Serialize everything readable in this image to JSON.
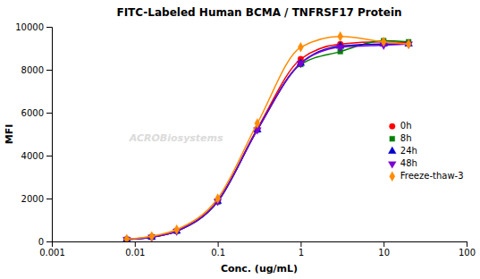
{
  "chart_data": {
    "type": "line",
    "title": "FITC-Labeled Human BCMA / TNFRSF17 Protein",
    "xlabel": "Conc. (ug/mL)",
    "ylabel": "MFI",
    "annotations": [
      "ACROBiosystems"
    ],
    "log": "x",
    "grid": false,
    "legend": "right",
    "xlim": [
      0.001,
      100
    ],
    "xticks": [
      0.001,
      0.01,
      0.1,
      1,
      10,
      100
    ],
    "ylim": [
      0,
      10000
    ],
    "yticks": [
      0,
      2000,
      4000,
      6000,
      8000,
      10000
    ],
    "x": [
      0.008,
      0.016,
      0.032,
      0.1,
      0.3,
      1.0,
      3.0,
      10.0,
      20.0
    ],
    "series": [
      {
        "name": "0h",
        "color": "#FF0000",
        "marker": "circle",
        "values": [
          100,
          220,
          500,
          1900,
          5250,
          8500,
          9200,
          9300,
          9250
        ]
      },
      {
        "name": "8h",
        "color": "#008000",
        "marker": "square",
        "values": [
          90,
          200,
          480,
          1850,
          5200,
          8250,
          8850,
          9350,
          9300
        ]
      },
      {
        "name": "24h",
        "color": "#0000CC",
        "marker": "triangle-up",
        "values": [
          90,
          200,
          480,
          1870,
          5200,
          8300,
          9100,
          9200,
          9200
        ]
      },
      {
        "name": "48h",
        "color": "#7B00D4",
        "marker": "triangle-down",
        "values": [
          90,
          200,
          480,
          1870,
          5200,
          8300,
          9050,
          9150,
          9200
        ]
      },
      {
        "name": "Freeze-thaw-3",
        "color": "#FF8C00",
        "marker": "diamond",
        "values": [
          110,
          240,
          550,
          2000,
          5500,
          9050,
          9550,
          9300,
          9200
        ]
      }
    ]
  }
}
